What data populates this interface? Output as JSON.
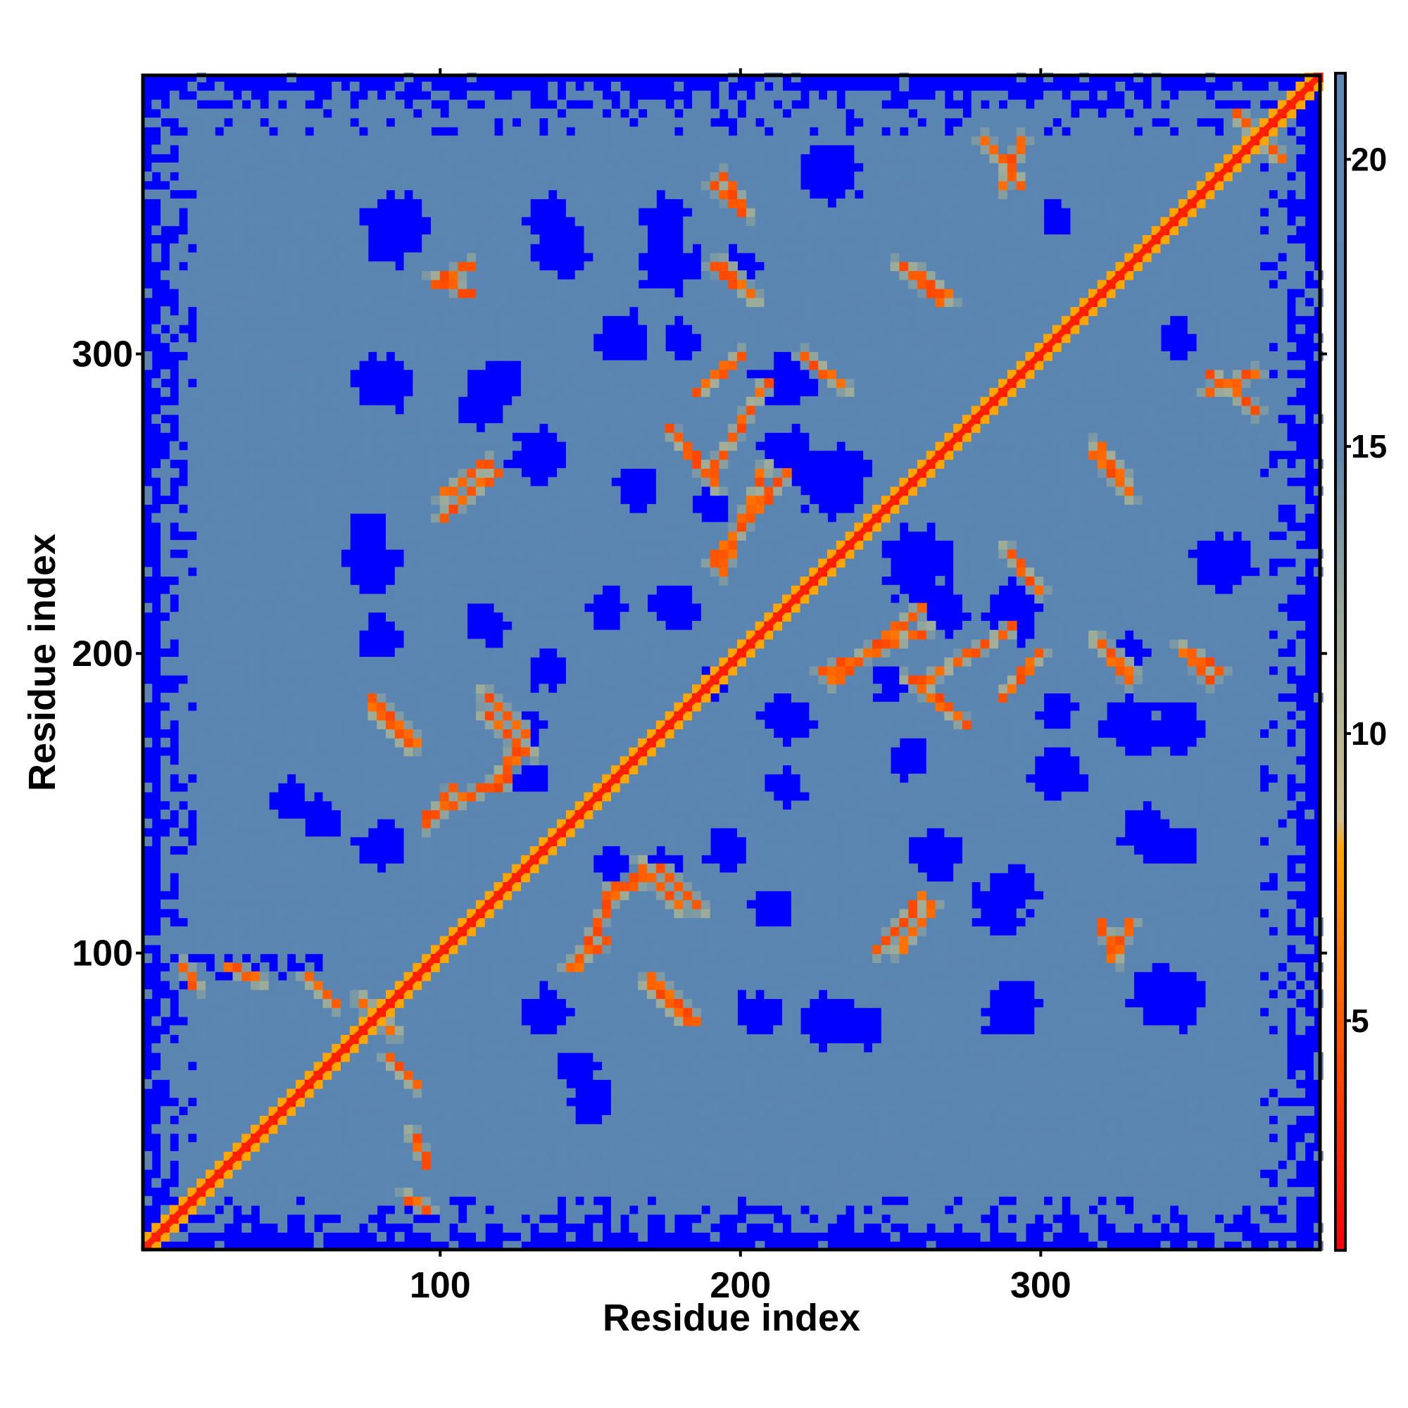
{
  "chart_data": {
    "type": "heatmap",
    "title": "",
    "xlabel": "Residue index",
    "ylabel": "Residue index",
    "n_residues": 393,
    "xlim": [
      1,
      393
    ],
    "ylim": [
      1,
      393
    ],
    "x_ticks": [
      100,
      200,
      300
    ],
    "y_ticks": [
      100,
      200,
      300
    ],
    "colorbar": {
      "ticks": [
        5,
        10,
        15,
        20
      ],
      "range": [
        1,
        21.5
      ],
      "stops": [
        {
          "value": 1,
          "color": "#ff0000"
        },
        {
          "value": 5,
          "color": "#ff5a00"
        },
        {
          "value": 8,
          "color": "#ffa500"
        },
        {
          "value": 8.5,
          "color": "#d2be8c"
        },
        {
          "value": 12,
          "color": "#9aaa9a"
        },
        {
          "value": 15,
          "color": "#5b85b0"
        },
        {
          "value": 21.5,
          "color": "#5a88b8"
        }
      ],
      "cutoff_color": "#0000ff",
      "cutoff_value": 20
    },
    "features": {
      "diagonal": "contact (distance < 5) along i = j",
      "background_beyond_cutoff": "blue (distance > 20)"
    },
    "contact_segments": [
      {
        "i": [
          77,
          92
        ],
        "j": [
          185,
          170
        ]
      },
      {
        "i": [
          114,
          128
        ],
        "j": [
          187,
          173
        ]
      },
      {
        "i": [
          118,
          128
        ],
        "j": [
          158,
          168
        ]
      },
      {
        "i": [
          95,
          115
        ],
        "j": [
          145,
          155
        ]
      },
      {
        "i": [
          166,
          180
        ],
        "j": [
          130,
          114
        ]
      },
      {
        "i": [
          155,
          170
        ],
        "j": [
          120,
          125
        ]
      },
      {
        "i": [
          168,
          181
        ],
        "j": [
          90,
          77
        ]
      },
      {
        "i": [
          142,
          155
        ],
        "j": [
          95,
          104
        ]
      },
      {
        "i": [
          82,
          92
        ],
        "j": [
          65,
          55
        ]
      },
      {
        "i": [
          73,
          84
        ],
        "j": [
          85,
          73
        ]
      },
      {
        "i": [
          190,
          202
        ],
        "j": [
          357,
          346
        ]
      },
      {
        "i": [
          190,
          205
        ],
        "j": [
          330,
          318
        ]
      },
      {
        "i": [
          186,
          200
        ],
        "j": [
          287,
          300
        ]
      },
      {
        "i": [
          185,
          192
        ],
        "j": [
          265,
          255
        ]
      },
      {
        "i": [
          190,
          215
        ],
        "j": [
          230,
          260
        ]
      },
      {
        "i": [
          226,
          262
        ],
        "j": [
          193,
          208
        ]
      },
      {
        "i": [
          260,
          290
        ],
        "j": [
          190,
          208
        ]
      },
      {
        "i": [
          262,
          275
        ],
        "j": [
          186,
          176
        ]
      },
      {
        "i": [
          280,
          293
        ],
        "j": [
          372,
          357
        ]
      },
      {
        "i": [
          258,
          270
        ],
        "j": [
          328,
          318
        ]
      },
      {
        "i": [
          318,
          330
        ],
        "j": [
          266,
          252
        ]
      },
      {
        "i": [
          318,
          330
        ],
        "j": [
          204,
          194
        ]
      },
      {
        "i": [
          350,
          360
        ],
        "j": [
          200,
          193
        ]
      },
      {
        "i": [
          355,
          372
        ],
        "j": [
          287,
          294
        ]
      },
      {
        "i": [
          365,
          378
        ],
        "j": [
          380,
          366
        ]
      },
      {
        "i": [
          245,
          260
        ],
        "j": [
          100,
          118
        ]
      },
      {
        "i": [
          320,
          325
        ],
        "j": [
          110,
          97
        ]
      },
      {
        "i": [
          100,
          116
        ],
        "j": [
          252,
          264
        ]
      },
      {
        "i": [
          98,
          110
        ],
        "j": [
          323,
          330
        ]
      },
      {
        "i": [
          30,
          40
        ],
        "j": [
          95,
          90
        ]
      },
      {
        "i": [
          88,
          96
        ],
        "j": [
          19,
          14
        ]
      },
      {
        "i": [
          220,
          235
        ],
        "j": [
          300,
          288
        ]
      }
    ],
    "blue_holes": [
      {
        "i": 75,
        "j": 240,
        "r": 7
      },
      {
        "i": 115,
        "j": 210,
        "r": 7
      },
      {
        "i": 155,
        "j": 215,
        "r": 6
      },
      {
        "i": 190,
        "j": 250,
        "r": 6
      },
      {
        "i": 230,
        "j": 258,
        "r": 12
      },
      {
        "i": 265,
        "j": 215,
        "r": 10
      },
      {
        "i": 290,
        "j": 215,
        "r": 9
      },
      {
        "i": 330,
        "j": 200,
        "r": 6
      },
      {
        "i": 345,
        "j": 175,
        "r": 8
      },
      {
        "i": 305,
        "j": 180,
        "r": 6
      },
      {
        "i": 215,
        "j": 178,
        "r": 8
      },
      {
        "i": 255,
        "j": 165,
        "r": 7
      },
      {
        "i": 305,
        "j": 160,
        "r": 9
      },
      {
        "i": 335,
        "j": 140,
        "r": 9
      },
      {
        "i": 265,
        "j": 132,
        "r": 9
      },
      {
        "i": 195,
        "j": 135,
        "r": 7
      },
      {
        "i": 130,
        "j": 158,
        "r": 6
      },
      {
        "i": 80,
        "j": 135,
        "r": 8
      },
      {
        "i": 50,
        "j": 150,
        "r": 7
      },
      {
        "i": 175,
        "j": 128,
        "r": 6
      },
      {
        "i": 145,
        "j": 60,
        "r": 7
      },
      {
        "i": 230,
        "j": 77,
        "r": 9
      },
      {
        "i": 205,
        "j": 80,
        "r": 7
      },
      {
        "i": 290,
        "j": 80,
        "r": 10
      },
      {
        "i": 345,
        "j": 84,
        "r": 9
      },
      {
        "i": 175,
        "j": 330,
        "r": 10
      },
      {
        "i": 85,
        "j": 340,
        "r": 10
      },
      {
        "i": 135,
        "j": 345,
        "r": 7
      },
      {
        "i": 230,
        "j": 360,
        "r": 10
      },
      {
        "i": 115,
        "j": 285,
        "r": 9
      },
      {
        "i": 210,
        "j": 290,
        "r": 7
      },
      {
        "i": 345,
        "j": 305,
        "r": 6
      },
      {
        "i": 290,
        "j": 120,
        "r": 8
      },
      {
        "i": 190,
        "j": 190,
        "r": 5
      }
    ]
  }
}
